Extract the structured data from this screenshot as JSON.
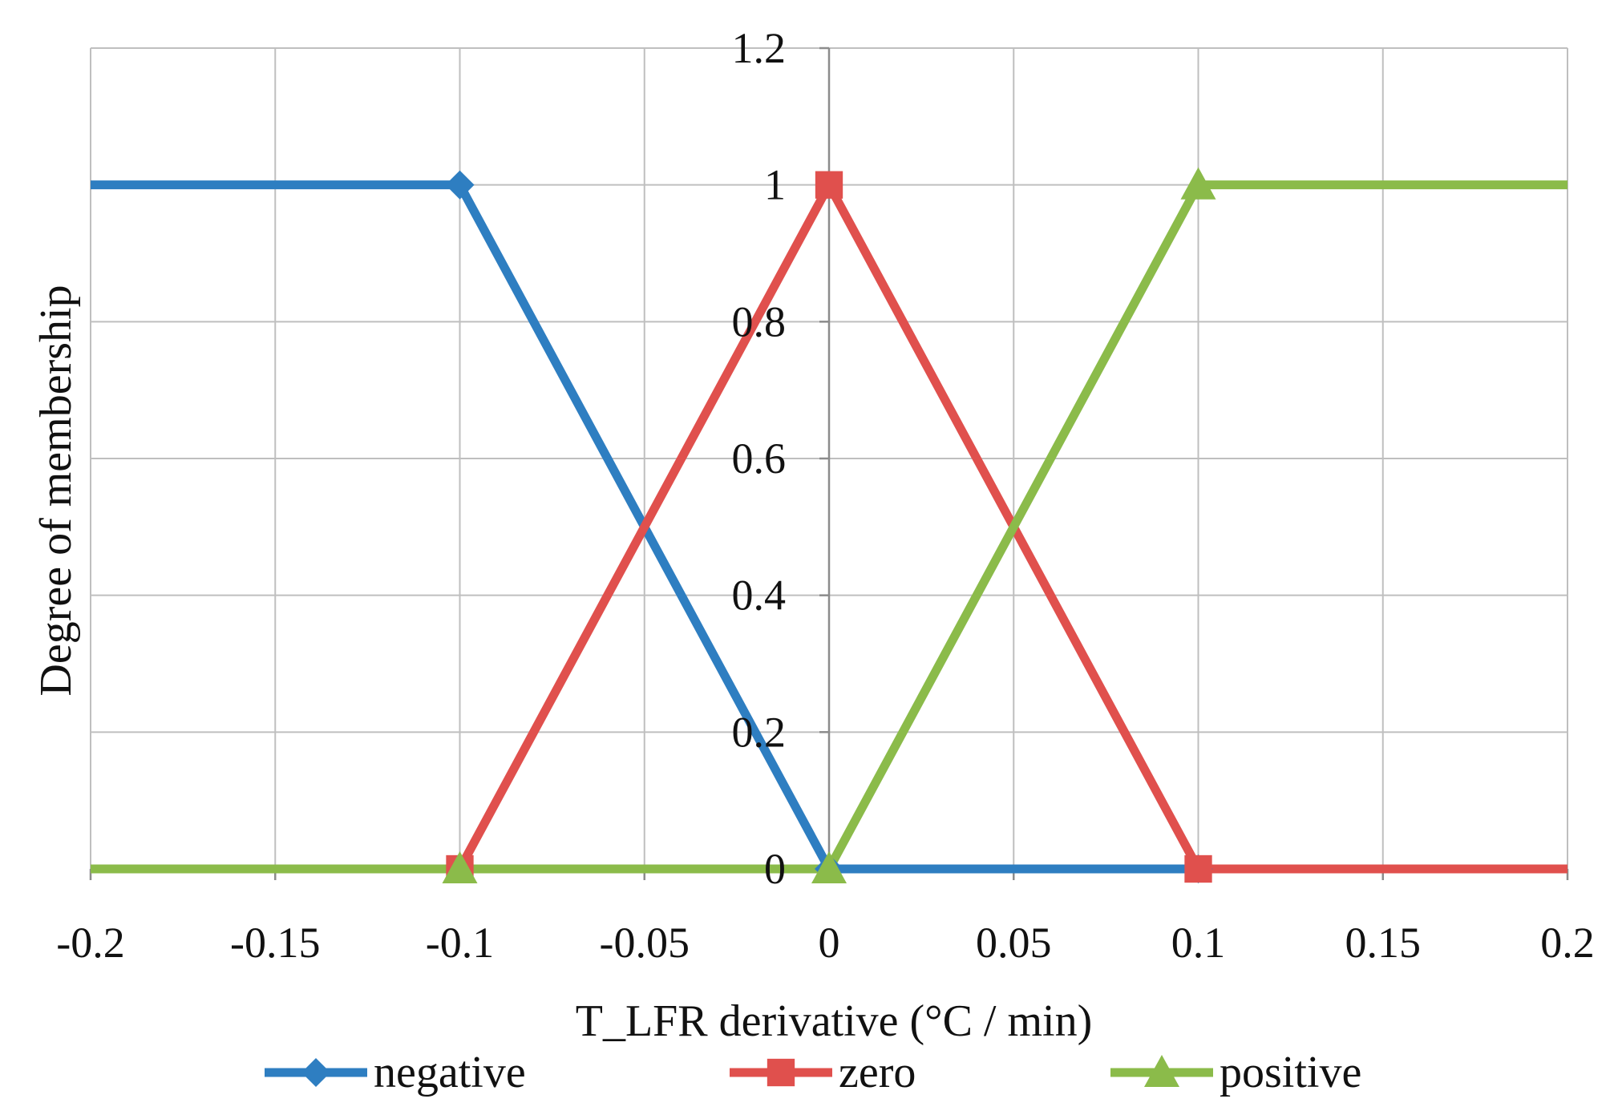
{
  "chart_data": {
    "type": "line",
    "title": "",
    "xlabel": "T_LFR derivative (°C / min)",
    "ylabel": "Degree of membership",
    "xlim": [
      -0.2,
      0.2
    ],
    "ylim": [
      0,
      1.2
    ],
    "grid": true,
    "legend_position": "bottom",
    "x_ticks": [
      -0.2,
      -0.15,
      -0.1,
      -0.05,
      0,
      0.05,
      0.1,
      0.15,
      0.2
    ],
    "x_tick_labels": [
      "-0.2",
      "-0.15",
      "-0.1",
      "-0.05",
      "0",
      "0.05",
      "0.1",
      "0.15",
      "0.2"
    ],
    "y_ticks": [
      0,
      0.2,
      0.4,
      0.6,
      0.8,
      1,
      1.2
    ],
    "y_tick_labels": [
      "0",
      "0.2",
      "0.4",
      "0.6",
      "0.8",
      "1",
      "1.2"
    ],
    "series": [
      {
        "name": "negative",
        "color": "#2E7EC1",
        "marker": "diamond",
        "x": [
          -0.2,
          -0.1,
          0,
          0.1,
          0.2
        ],
        "y": [
          1,
          1,
          0,
          0,
          0
        ],
        "marker_x": [
          -0.1,
          0,
          0.1
        ],
        "marker_y": [
          1,
          0,
          0
        ]
      },
      {
        "name": "zero",
        "color": "#E0504D",
        "marker": "square",
        "x": [
          -0.2,
          -0.1,
          0,
          0.1,
          0.2
        ],
        "y": [
          0,
          0,
          1,
          0,
          0
        ],
        "marker_x": [
          -0.1,
          0,
          0.1
        ],
        "marker_y": [
          0,
          1,
          0
        ]
      },
      {
        "name": "positive",
        "color": "#8BBB4A",
        "marker": "triangle",
        "x": [
          -0.2,
          -0.1,
          0,
          0.1,
          0.2
        ],
        "y": [
          0,
          0,
          0,
          1,
          1
        ],
        "marker_x": [
          -0.1,
          0,
          0.1
        ],
        "marker_y": [
          0,
          0,
          1
        ]
      }
    ]
  }
}
